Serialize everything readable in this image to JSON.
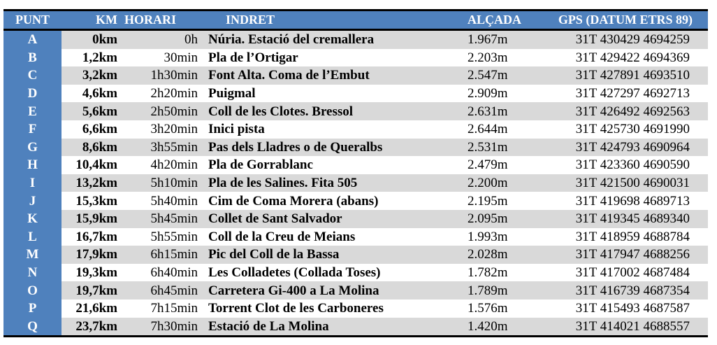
{
  "colors": {
    "header_bg": "#4F81BD",
    "stripe": "#D9D9D9",
    "border": "#000000"
  },
  "headers": [
    "PUNT",
    "KM",
    "HORARI",
    "INDRET",
    "ALÇADA",
    "GPS (DATUM ETRS 89)"
  ],
  "rows": [
    [
      "A",
      "0km",
      "0h",
      "Núria. Estació del cremallera",
      "1.967m",
      "31T 430429 4694259"
    ],
    [
      "B",
      "1,2km",
      "30min",
      "Pla de l’Ortigar",
      "2.203m",
      "31T 429422 4694369"
    ],
    [
      "C",
      "3,2km",
      "1h30min",
      "Font Alta. Coma de l’Embut",
      "2.547m",
      "31T 427891 4693510"
    ],
    [
      "D",
      "4,6km",
      "2h20min",
      "Puigmal",
      "2.909m",
      "31T 427297 4692713"
    ],
    [
      "E",
      "5,6km",
      "2h50min",
      "Coll de les Clotes. Bressol",
      "2.631m",
      "31T 426492 4692563"
    ],
    [
      "F",
      "6,6km",
      "3h20min",
      "Inici pista",
      "2.644m",
      "31T 425730 4691990"
    ],
    [
      "G",
      "8,6km",
      "3h55min",
      "Pas dels Lladres o de Queralbs",
      "2.531m",
      "31T 424793 4690964"
    ],
    [
      "H",
      "10,4km",
      "4h20min",
      "Pla de Gorrablanc",
      "2.479m",
      "31T 423360 4690590"
    ],
    [
      "I",
      "13,2km",
      "5h10min",
      "Pla de les Salines. Fita 505",
      "2.200m",
      "31T 421500 4690031"
    ],
    [
      "J",
      "15,3km",
      "5h40min",
      "Cim de Coma Morera  (abans)",
      "2.195m",
      "31T 419698 4689713"
    ],
    [
      "K",
      "15,9km",
      "5h45min",
      "Collet de Sant Salvador",
      "2.095m",
      "31T 419345 4689340"
    ],
    [
      "L",
      "16,7km",
      "5h55min",
      "Coll de la Creu de Meians",
      "1.993m",
      "31T 418959 4688784"
    ],
    [
      "M",
      "17,9km",
      "6h15min",
      "Pic del Coll de la Bassa",
      "2.028m",
      "31T 417947 4688256"
    ],
    [
      "N",
      "19,3km",
      "6h40min",
      "Les Colladetes (Collada Toses)",
      "1.782m",
      "31T 417002 4687484"
    ],
    [
      "O",
      "19,7km",
      "6h45min",
      "Carretera Gi-400 a La Molina",
      "1.789m",
      "31T 416739 4687354"
    ],
    [
      "P",
      "21,6km",
      "7h15min",
      "Torrent Clot de les Carboneres",
      "1.576m",
      "31T 415493 4687587"
    ],
    [
      "Q",
      "23,7km",
      "7h30min",
      "Estació de La Molina",
      "1.420m",
      "31T 414021 4688557"
    ]
  ]
}
